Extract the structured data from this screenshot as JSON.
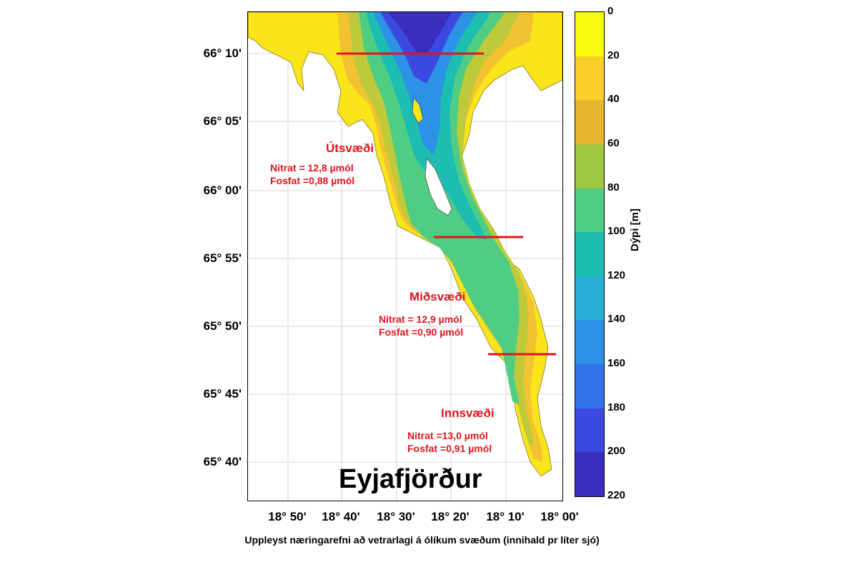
{
  "map": {
    "title": "Eyjafjörður",
    "lat_labels": [
      "66° 10'",
      "66° 05'",
      "66° 00'",
      "65° 55'",
      "65° 50'",
      "65° 45'",
      "65° 40'"
    ],
    "lon_labels": [
      "18° 50'",
      "18° 40'",
      "18° 30'",
      "18° 20'",
      "18° 10'",
      "18° 00'"
    ],
    "grid": true,
    "section_line_color": "#e0141e"
  },
  "regions": [
    {
      "name": "Útsvæði",
      "nitrat": "Nitrat = 12,8 µmól",
      "fosfat": "Fosfat =0,88 µmól"
    },
    {
      "name": "Miðsvæði",
      "nitrat": "Nitrat = 12,9 µmól",
      "fosfat": "Fosfat =0,90 µmól"
    },
    {
      "name": "Innsvæði",
      "nitrat": "Nitrat  =13,0 µmól",
      "fosfat": "Fosfat =0,91 µmól"
    }
  ],
  "colorbar": {
    "title": "Dýpi [m]",
    "ticks": [
      "0",
      "20",
      "40",
      "60",
      "80",
      "100",
      "120",
      "140",
      "160",
      "180",
      "200",
      "220"
    ],
    "colors": [
      "#f9fb0e",
      "#f9d02a",
      "#e8b52e",
      "#9fc740",
      "#4fcd82",
      "#1ebdb1",
      "#2ab0d6",
      "#2b92e6",
      "#3173e7",
      "#3c49e0",
      "#3b2ebd"
    ]
  },
  "caption": "Uppleyst næringarefni að vetrarlagi á ólíkum svæðum (innihald pr líter sjó)"
}
